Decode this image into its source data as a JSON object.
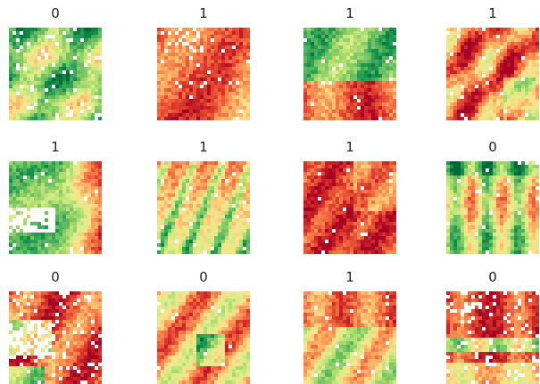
{
  "grid": {
    "rows": 3,
    "cols": 4,
    "panels": [
      {
        "label": "0",
        "pattern": "mixed-green",
        "seed": 11
      },
      {
        "label": "1",
        "pattern": "red-orange",
        "seed": 23
      },
      {
        "label": "1",
        "pattern": "green-bottom-red",
        "seed": 37
      },
      {
        "label": "1",
        "pattern": "diagonal-orange",
        "seed": 41
      },
      {
        "label": "1",
        "pattern": "green-right-red",
        "seed": 53
      },
      {
        "label": "1",
        "pattern": "red-green-streaks",
        "seed": 67
      },
      {
        "label": "1",
        "pattern": "solid-red",
        "seed": 79
      },
      {
        "label": "0",
        "pattern": "green-streaks",
        "seed": 83
      },
      {
        "label": "0",
        "pattern": "red-with-white",
        "seed": 97
      },
      {
        "label": "0",
        "pattern": "red-green-patch",
        "seed": 109
      },
      {
        "label": "1",
        "pattern": "red-top-green",
        "seed": 127
      },
      {
        "label": "0",
        "pattern": "red-banded",
        "seed": 131
      }
    ]
  },
  "colormap": {
    "name": "RdYlGn",
    "stops": [
      "#a50026",
      "#d73027",
      "#f46d43",
      "#fdae61",
      "#fee08b",
      "#d9ef8b",
      "#a6d96a",
      "#66bd63",
      "#1a9850",
      "#006837"
    ]
  }
}
